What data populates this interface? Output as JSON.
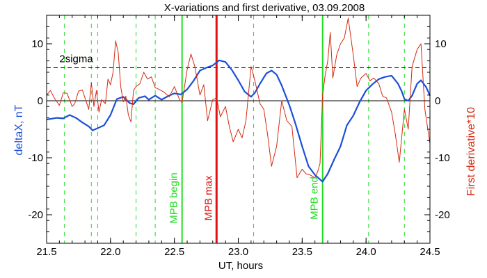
{
  "chart_data": {
    "type": "line",
    "title": "X-variations and first derivative, 03.09.2008",
    "xlabel": "UT, hours",
    "ylabel_left": "deltaX, nT",
    "ylabel_right": "First derivative*10",
    "xlim": [
      21.5,
      24.5
    ],
    "ylim": [
      -25,
      15
    ],
    "x_ticks": [
      21.5,
      22.0,
      22.5,
      23.0,
      23.5,
      24.0,
      24.5
    ],
    "x_tick_labels": [
      "21.5",
      "22.0",
      "22.5",
      "23.0",
      "23.5",
      "24.0",
      "24.5"
    ],
    "y_ticks": [
      -20,
      -10,
      0,
      10
    ],
    "y_tick_labels": [
      "-20",
      "-10",
      "0",
      "10"
    ],
    "zero_line": 0,
    "threshold": {
      "label": "2sigma",
      "value": 5.8
    },
    "colors": {
      "deltaX": "#1a4fd8",
      "derivative": "#d42a10",
      "green": "#22dd22",
      "red": "#e01010",
      "axis": "#000000"
    },
    "dashed_green_lines": [
      21.64,
      21.85,
      21.9,
      22.2,
      22.35,
      23.12,
      24.02,
      24.3
    ],
    "markers": [
      {
        "label": "MPB begin",
        "x": 22.56,
        "color": "#22dd22"
      },
      {
        "label": "MPB max",
        "x": 22.83,
        "color": "#e01010"
      },
      {
        "label": "MPB end",
        "x": 23.66,
        "color": "#22dd22"
      }
    ],
    "series": [
      {
        "name": "deltaX",
        "x": [
          21.5,
          21.58,
          21.63,
          21.68,
          21.73,
          21.78,
          21.83,
          21.86,
          21.9,
          21.95,
          22.0,
          22.05,
          22.1,
          22.15,
          22.18,
          22.22,
          22.27,
          22.3,
          22.35,
          22.4,
          22.45,
          22.5,
          22.55,
          22.6,
          22.65,
          22.7,
          22.75,
          22.8,
          22.85,
          22.9,
          22.95,
          23.0,
          23.05,
          23.1,
          23.13,
          23.17,
          23.22,
          23.26,
          23.3,
          23.34,
          23.4,
          23.45,
          23.5,
          23.55,
          23.6,
          23.64,
          23.66,
          23.7,
          23.75,
          23.8,
          23.85,
          23.9,
          23.95,
          24.0,
          24.05,
          24.1,
          24.15,
          24.2,
          24.25,
          24.28,
          24.3,
          24.33,
          24.36,
          24.4,
          24.43,
          24.47,
          24.5
        ],
        "y": [
          -3.3,
          -3.0,
          -3.1,
          -2.5,
          -3.0,
          -3.8,
          -4.5,
          -5.2,
          -4.8,
          -4.3,
          -2.5,
          0.3,
          0.7,
          -0.4,
          -0.6,
          0.5,
          0.8,
          0.2,
          0.9,
          0.2,
          0.8,
          1.3,
          1.1,
          2.0,
          3.5,
          5.3,
          5.8,
          6.2,
          7.1,
          6.8,
          5.4,
          3.6,
          1.6,
          0.7,
          1.4,
          3.0,
          4.8,
          5.3,
          4.6,
          2.7,
          -0.8,
          -4.2,
          -8.0,
          -11.5,
          -13.0,
          -13.8,
          -14.2,
          -12.8,
          -10.3,
          -8.0,
          -4.3,
          -2.6,
          -0.2,
          1.8,
          2.9,
          3.8,
          4.2,
          4.4,
          3.0,
          1.6,
          0.3,
          0.0,
          0.9,
          3.0,
          3.6,
          2.4,
          0.9
        ]
      },
      {
        "name": "First derivative*10",
        "x": [
          21.5,
          21.53,
          21.56,
          21.6,
          21.63,
          21.66,
          21.7,
          21.72,
          21.75,
          21.78,
          21.8,
          21.83,
          21.85,
          21.87,
          21.89,
          21.91,
          21.93,
          21.96,
          21.98,
          22.0,
          22.02,
          22.04,
          22.06,
          22.08,
          22.1,
          22.12,
          22.14,
          22.16,
          22.18,
          22.2,
          22.23,
          22.26,
          22.29,
          22.32,
          22.35,
          22.38,
          22.42,
          22.46,
          22.5,
          22.54,
          22.56,
          22.6,
          22.63,
          22.66,
          22.7,
          22.73,
          22.76,
          22.8,
          22.83,
          22.86,
          22.9,
          22.93,
          22.96,
          23.0,
          23.03,
          23.06,
          23.1,
          23.13,
          23.17,
          23.2,
          23.23,
          23.26,
          23.3,
          23.34,
          23.38,
          23.42,
          23.46,
          23.5,
          23.53,
          23.56,
          23.6,
          23.62,
          23.64,
          23.66,
          23.68,
          23.7,
          23.72,
          23.74,
          23.77,
          23.8,
          23.83,
          23.86,
          23.9,
          23.93,
          23.96,
          24.0,
          24.03,
          24.06,
          24.1,
          24.13,
          24.16,
          24.2,
          24.23,
          24.26,
          24.3,
          24.33,
          24.36,
          24.4,
          24.43,
          24.46,
          24.5
        ],
        "y": [
          1.0,
          1.8,
          0.5,
          -0.8,
          1.4,
          1.3,
          -1.0,
          -0.5,
          1.7,
          1.9,
          0.5,
          -1.5,
          3.2,
          -1.0,
          1.8,
          -2.0,
          0.2,
          -0.5,
          3.8,
          2.8,
          5.0,
          10.5,
          8.5,
          2.5,
          -0.2,
          0.8,
          -2.5,
          -3.7,
          1.8,
          2.5,
          3.0,
          5.0,
          3.8,
          4.2,
          2.3,
          2.0,
          1.5,
          0.7,
          2.5,
          0.2,
          -0.3,
          5.5,
          8.2,
          6.0,
          1.0,
          2.8,
          -3.5,
          0.2,
          0.5,
          -2.8,
          -1.0,
          -4.5,
          -7.2,
          -5.0,
          -6.5,
          -3.5,
          6.0,
          3.5,
          -0.5,
          -1.5,
          -6.0,
          -11.5,
          -8.0,
          0.0,
          -3.5,
          -4.5,
          -13.5,
          -12.0,
          -12.8,
          -13.0,
          -13.5,
          -12.5,
          -11.0,
          1.0,
          4.5,
          7.0,
          12.0,
          4.0,
          8.0,
          10.0,
          11.0,
          14.5,
          8.0,
          2.5,
          4.0,
          4.8,
          3.5,
          4.0,
          3.0,
          0.8,
          0.5,
          -2.0,
          -6.0,
          -10.8,
          -1.5,
          -5.0,
          6.0,
          9.0,
          10.0,
          -1.5,
          -7.5
        ]
      }
    ]
  }
}
